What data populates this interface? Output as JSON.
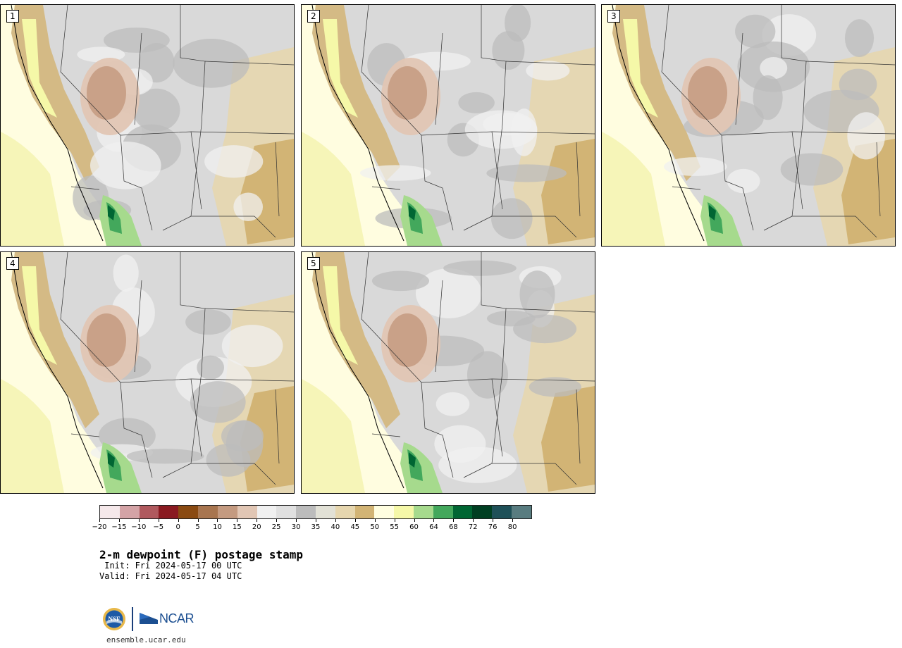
{
  "title": "2-m dewpoint (F) postage stamp",
  "init": " Init: Fri 2024-05-17 00 UTC",
  "valid": "Valid: Fri 2024-05-17 04 UTC",
  "website": "ensemble.ucar.edu",
  "logos": {
    "nsf": "NSF",
    "ncar": "NCAR"
  },
  "panels": [
    {
      "label": "1"
    },
    {
      "label": "2"
    },
    {
      "label": "3"
    },
    {
      "label": "4"
    },
    {
      "label": "5"
    }
  ],
  "colorbar": {
    "colors": [
      "#f5e8ea",
      "#d4a3a6",
      "#b0595e",
      "#8a1a21",
      "#8a4a12",
      "#a8754f",
      "#c49a80",
      "#e1c6b4",
      "#f0f0f0",
      "#e0e0e0",
      "#bcbcbc",
      "#e2e1d6",
      "#e6d6ae",
      "#d2b475",
      "#fffee0",
      "#f5f8a8",
      "#a6da8d",
      "#43a85c",
      "#006633",
      "#003f22",
      "#1e5058",
      "#587c80"
    ],
    "tick_labels": [
      "−20",
      "−15",
      "−10",
      "−5",
      "0",
      "5",
      "10",
      "15",
      "20",
      "25",
      "30",
      "35",
      "40",
      "45",
      "50",
      "55",
      "60",
      "64",
      "68",
      "72",
      "76",
      "80"
    ]
  }
}
